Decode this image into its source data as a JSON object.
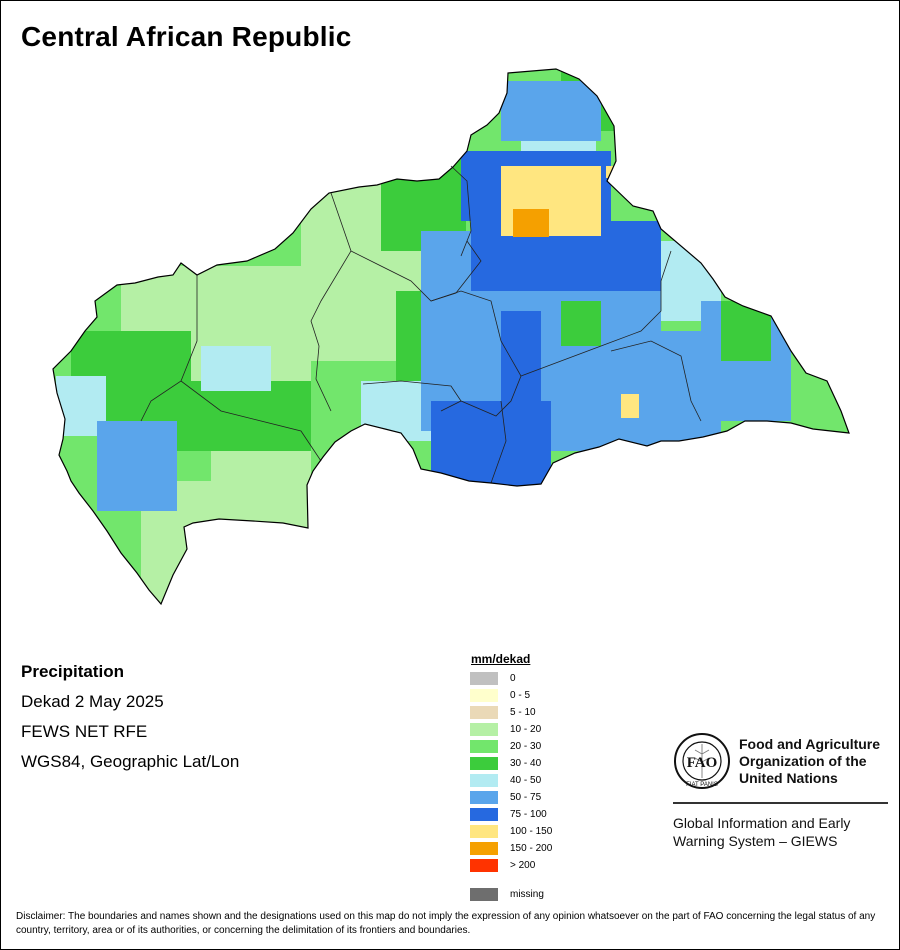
{
  "title": "Central African Republic",
  "info": {
    "variable": "Precipitation",
    "period": "Dekad 2 May 2025",
    "source": "FEWS NET RFE",
    "projection": "WGS84, Geographic Lat/Lon"
  },
  "legend": {
    "title": "mm/dekad",
    "classes": [
      {
        "label": "0",
        "color": "#c0c0c0"
      },
      {
        "label": "0 - 5",
        "color": "#ffffcc"
      },
      {
        "label": "5 - 10",
        "color": "#ead9b7"
      },
      {
        "label": "10 - 20",
        "color": "#b5f0a5"
      },
      {
        "label": "20 - 30",
        "color": "#72e66c"
      },
      {
        "label": "30 - 40",
        "color": "#3ccc3c"
      },
      {
        "label": "40 - 50",
        "color": "#b2ebf2"
      },
      {
        "label": "50 - 75",
        "color": "#5aa5eb"
      },
      {
        "label": "75 - 100",
        "color": "#2669e0"
      },
      {
        "label": "100 - 150",
        "color": "#ffe680"
      },
      {
        "label": "150 - 200",
        "color": "#f5a000"
      },
      {
        "label": "> 200",
        "color": "#ff3300"
      }
    ],
    "missing": {
      "label": "missing",
      "color": "#6e6e6e"
    }
  },
  "fao": {
    "name_lines": [
      "Food and Agriculture",
      "Organization of the",
      "United Nations"
    ],
    "logo_text": "FIAT PANIS",
    "system_lines": [
      "Global Information and Early",
      "Warning System – GIEWS"
    ]
  },
  "disclaimer": "Disclaimer: The boundaries and names shown and the designations used on this map do not imply the expression of any opinion whatsoever on the part of FAO concerning the legal status of any country, territory, area or of its authorities, or concerning the delimitation of its frontiers and boundaries."
}
